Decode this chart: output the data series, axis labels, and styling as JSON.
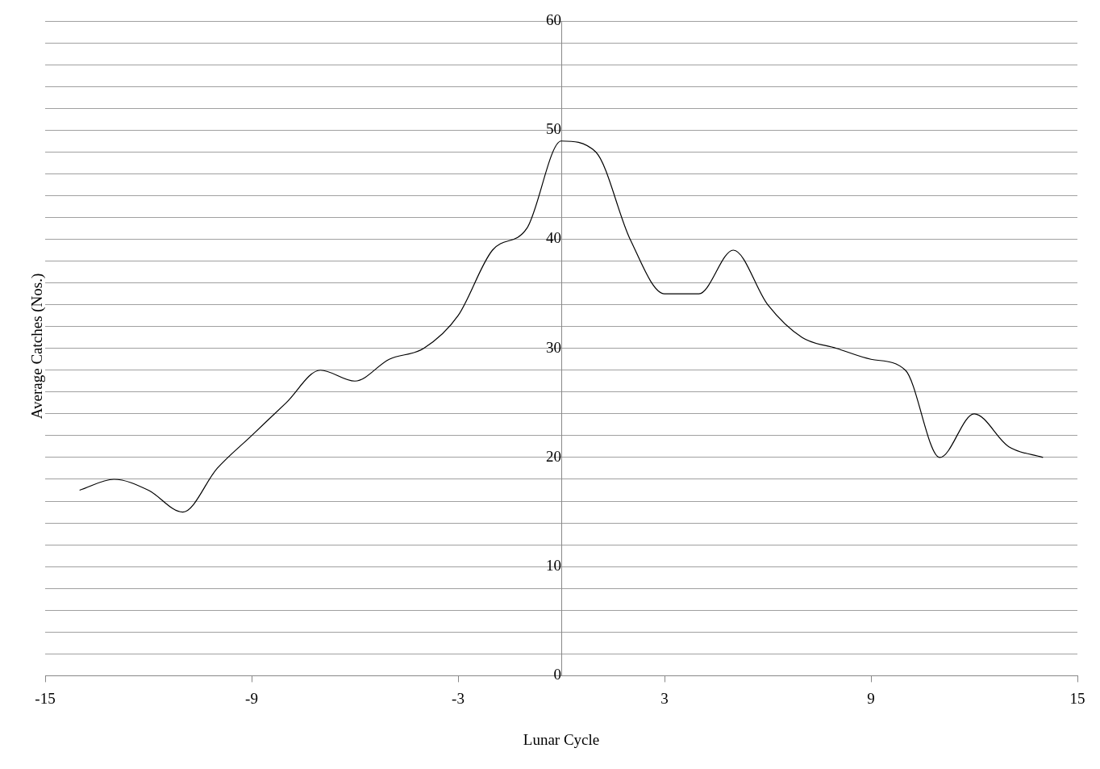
{
  "chart_data": {
    "type": "line",
    "xlabel": "Lunar Cycle",
    "ylabel": "Average Catches (Nos.)",
    "x": [
      -14,
      -13,
      -12,
      -11,
      -10,
      -9,
      -8,
      -7,
      -6,
      -5,
      -4,
      -3,
      -2,
      -1,
      0,
      1,
      2,
      3,
      4,
      5,
      6,
      7,
      8,
      9,
      10,
      11,
      12,
      13,
      14
    ],
    "series": [
      {
        "color": "#000000",
        "values": [
          17,
          18,
          17,
          15,
          19,
          22,
          25,
          28,
          27,
          29,
          30,
          33,
          39,
          41,
          49,
          48,
          40,
          35,
          35,
          39,
          34,
          31,
          30,
          29,
          28,
          20,
          24,
          21,
          20
        ]
      }
    ],
    "xlim": [
      -15,
      15
    ],
    "xticks": [
      -15,
      -9,
      -3,
      3,
      9,
      15
    ],
    "ylim": [
      0,
      60
    ],
    "yticks": [
      0,
      {
        "value": 2,
        "label": null
      },
      {
        "value": 4,
        "label": null
      },
      {
        "value": 6,
        "label": null
      },
      {
        "value": 8,
        "label": null
      },
      10,
      {
        "value": 12,
        "label": null
      },
      {
        "value": 14,
        "label": null
      },
      {
        "value": 16,
        "label": null
      },
      {
        "value": 18,
        "label": null
      },
      20,
      {
        "value": 22,
        "label": null
      },
      {
        "value": 24,
        "label": null
      },
      {
        "value": 26,
        "label": null
      },
      {
        "value": 28,
        "label": null
      },
      30,
      {
        "value": 32,
        "label": null
      },
      {
        "value": 34,
        "label": null
      },
      {
        "value": 36,
        "label": null
      },
      {
        "value": 38,
        "label": null
      },
      40,
      {
        "value": 42,
        "label": null
      },
      {
        "value": 44,
        "label": null
      },
      {
        "value": 46,
        "label": null
      },
      {
        "value": 48,
        "label": null
      },
      50,
      {
        "value": 52,
        "label": null
      },
      {
        "value": 54,
        "label": null
      },
      {
        "value": 56,
        "label": null
      },
      {
        "value": 58,
        "label": null
      },
      60
    ],
    "grid": "y",
    "legend": false,
    "marker": "none",
    "line_style": "solid"
  }
}
